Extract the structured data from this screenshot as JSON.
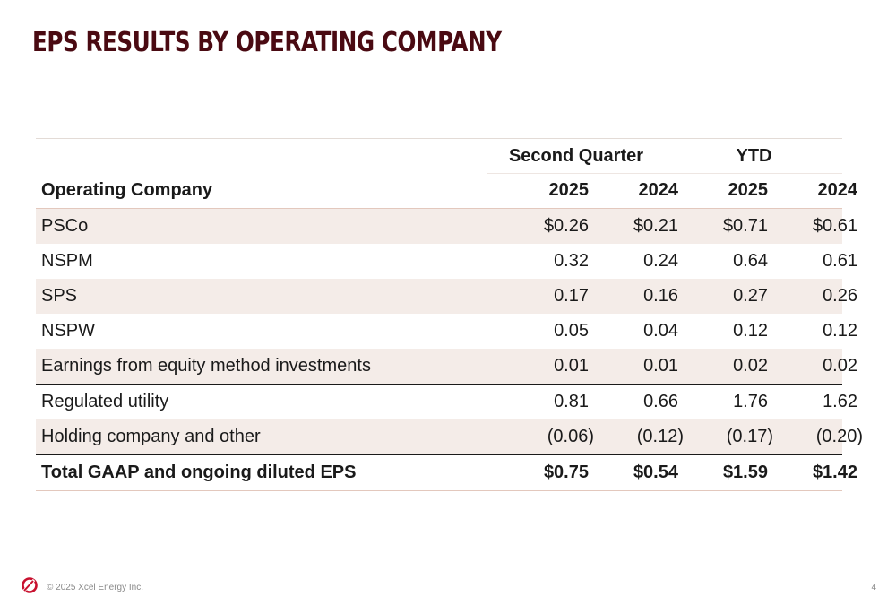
{
  "title": "EPS RESULTS BY OPERATING COMPANY",
  "table": {
    "group_headers": [
      "Second Quarter",
      "YTD"
    ],
    "column_label": "Operating Company",
    "years": [
      "2025",
      "2024",
      "2025",
      "2024"
    ],
    "rows": [
      {
        "label": "PSCo",
        "values": [
          "$0.26",
          "$0.21",
          "$0.71",
          "$0.61"
        ]
      },
      {
        "label": "NSPM",
        "values": [
          "0.32",
          "0.24",
          "0.64",
          "0.61"
        ]
      },
      {
        "label": "SPS",
        "values": [
          "0.17",
          "0.16",
          "0.27",
          "0.26"
        ]
      },
      {
        "label": "NSPW",
        "values": [
          "0.05",
          "0.04",
          "0.12",
          "0.12"
        ]
      },
      {
        "label": "Earnings from equity method investments",
        "values": [
          "0.01",
          "0.01",
          "0.02",
          "0.02"
        ]
      },
      {
        "label": "Regulated utility",
        "values": [
          "0.81",
          "0.66",
          "1.76",
          "1.62"
        ]
      },
      {
        "label": "Holding company and other",
        "values": [
          "(0.06)",
          "(0.12)",
          "(0.17)",
          "(0.20)"
        ]
      },
      {
        "label": "Total GAAP and ongoing diluted EPS",
        "values": [
          "$0.75",
          "$0.54",
          "$1.59",
          "$1.42"
        ]
      }
    ]
  },
  "footer": {
    "copyright": "© 2025 Xcel Energy Inc.",
    "page_number": "4",
    "logo_icon": "xcel-energy-logo-icon",
    "brand_color": "#c8102e"
  }
}
